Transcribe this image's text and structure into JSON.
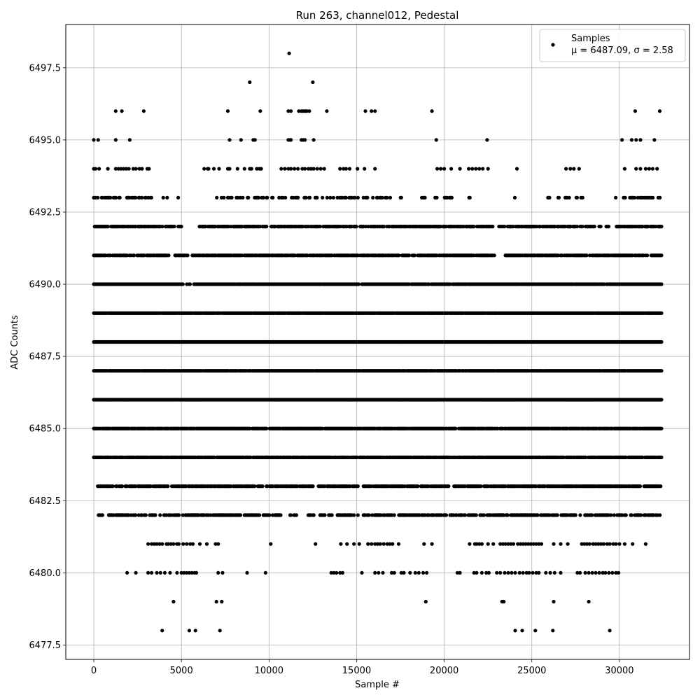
{
  "chart_data": {
    "type": "scatter",
    "title": "Run 263, channel012, Pedestal",
    "xlabel": "Sample #",
    "ylabel": "ADC Counts",
    "xlim": [
      -1600,
      34000
    ],
    "ylim": [
      6477.0,
      6499.0
    ],
    "x_ticks": [
      0,
      5000,
      10000,
      15000,
      20000,
      25000,
      30000
    ],
    "x_tick_labels": [
      "0",
      "5000",
      "10000",
      "15000",
      "20000",
      "25000",
      "30000"
    ],
    "y_ticks": [
      6477.5,
      6480.0,
      6482.5,
      6485.0,
      6487.5,
      6490.0,
      6492.5,
      6495.0,
      6497.5
    ],
    "y_tick_labels": [
      "6477.5",
      "6480.0",
      "6482.5",
      "6485.0",
      "6487.5",
      "6490.0",
      "6492.5",
      "6495.0",
      "6497.5"
    ],
    "grid": true,
    "legend": {
      "position": "top-right",
      "label": "Samples",
      "stats": "μ = 6487.09, σ = 2.58"
    },
    "marker_color": "#000000",
    "sample_range": [
      0,
      32400
    ],
    "mean": 6487.09,
    "sigma": 2.58,
    "series": [
      {
        "name": "Samples",
        "levels": [
          {
            "y": 6498,
            "x": [
              11150
            ]
          },
          {
            "y": 6497,
            "x": [
              8900,
              12500
            ]
          },
          {
            "y": 6496,
            "x": [
              1250,
              1600,
              2850,
              7650,
              9500,
              11100,
              11250,
              11700,
              11850,
              11950,
              12050,
              12150,
              12300,
              13300,
              15500,
              15850,
              16050,
              19300,
              30900,
              32300
            ]
          },
          {
            "y": 6495,
            "x": [
              0,
              250,
              1250,
              2050,
              7750,
              8400,
              9100,
              9200,
              11100,
              11200,
              11250,
              11850,
              11950,
              12050,
              12550,
              19550,
              22450,
              30150,
              30700,
              30950,
              31200,
              32000
            ]
          },
          {
            "y": 6494,
            "x": [
              0,
              100,
              300,
              800,
              1250,
              1400,
              1550,
              1700,
              1850,
              2000,
              2250,
              2400,
              2600,
              2750,
              3050,
              3150,
              6300,
              6500,
              6550,
              6850,
              7150,
              7650,
              7750,
              8200,
              8600,
              8900,
              9000,
              9300,
              9450,
              9550,
              10700,
              10900,
              11100,
              11250,
              11450,
              11650,
              11900,
              12050,
              12250,
              12400,
              12550,
              12750,
              12950,
              13150,
              14050,
              14250,
              14400,
              14600,
              15050,
              15450,
              16050,
              19600,
              19800,
              20000,
              20400,
              20900,
              21400,
              21600,
              21800,
              22000,
              22200,
              22500,
              24150,
              26950,
              27200,
              27400,
              27700,
              30300,
              30950,
              31200,
              31500,
              31700,
              31900,
              32150
            ]
          },
          {
            "y": 6493,
            "density": 0.35,
            "gaps": [
              [
                3300,
                3900
              ],
              [
                4300,
                4800
              ],
              [
                5000,
                5500
              ],
              [
                5700,
                6900
              ],
              [
                17000,
                17500
              ],
              [
                17800,
                18200
              ],
              [
                18400,
                18700
              ],
              [
                19000,
                19200
              ],
              [
                20500,
                21400
              ],
              [
                21900,
                22100
              ],
              [
                22300,
                24000
              ],
              [
                24300,
                25900
              ],
              [
                26200,
                26500
              ],
              [
                26700,
                26900
              ],
              [
                28000,
                29700
              ],
              [
                29800,
                30200
              ]
            ]
          },
          {
            "y": 6492,
            "density": 0.7,
            "gaps": [
              [
                4600,
                4800
              ],
              [
                5000,
                6000
              ],
              [
                9900,
                10100
              ],
              [
                22800,
                23100
              ],
              [
                28600,
                28800
              ],
              [
                29000,
                29200
              ],
              [
                29400,
                29800
              ]
            ]
          },
          {
            "y": 6491,
            "density": 0.8,
            "gaps": [
              [
                4300,
                4600
              ],
              [
                5400,
                5600
              ],
              [
                22900,
                23400
              ]
            ]
          },
          {
            "y": 6490,
            "density": 0.9,
            "gaps": [
              [
                5100,
                5300
              ],
              [
                5500,
                5700
              ]
            ]
          },
          {
            "y": 6489,
            "density": 0.97,
            "gaps": []
          },
          {
            "y": 6488,
            "density": 1.0,
            "gaps": []
          },
          {
            "y": 6487,
            "density": 0.97,
            "gaps": []
          },
          {
            "y": 6486,
            "density": 1.0,
            "gaps": []
          },
          {
            "y": 6485,
            "density": 0.92,
            "gaps": []
          },
          {
            "y": 6484,
            "density": 0.9,
            "gaps": []
          },
          {
            "y": 6483,
            "density": 0.75,
            "gaps": [
              [
                0,
                200
              ],
              [
                1900,
                2000
              ],
              [
                12600,
                12800
              ],
              [
                15100,
                15300
              ],
              [
                20300,
                20500
              ]
            ]
          },
          {
            "y": 6482,
            "density": 0.55,
            "gaps": [
              [
                0,
                200
              ],
              [
                10700,
                11200
              ],
              [
                11600,
                12200
              ],
              [
                12600,
                12800
              ],
              [
                13600,
                13900
              ]
            ]
          },
          {
            "y": 6481,
            "x": [
              3100,
              3300,
              3450,
              3600,
              3750,
              3900,
              4150,
              4250,
              4400,
              4550,
              4750,
              4850,
              5100,
              5300,
              5500,
              5650,
              6050,
              6450,
              6950,
              7100,
              10100,
              12650,
              14100,
              14450,
              14850,
              15150,
              15650,
              15850,
              16050,
              16200,
              16350,
              16550,
              16750,
              16900,
              17050,
              17400,
              18850,
              19300,
              21450,
              21750,
              21850,
              22000,
              22150,
              22500,
              22800,
              23200,
              23350,
              23500,
              23650,
              23800,
              23950,
              24200,
              24350,
              24500,
              24650,
              24800,
              24950,
              25100,
              25250,
              25400,
              25550,
              26250,
              26650,
              27050,
              27850,
              28000,
              28150,
              28300,
              28500,
              28650,
              28800,
              28950,
              29100,
              29300,
              29450,
              29650,
              29800,
              30000,
              30300,
              30750,
              31500
            ]
          },
          {
            "y": 6480,
            "x": [
              1900,
              2400,
              3100,
              3300,
              3600,
              3800,
              4050,
              4350,
              4750,
              5000,
              5150,
              5300,
              5450,
              5600,
              5750,
              5850,
              7100,
              7350,
              8750,
              9800,
              13550,
              13700,
              13850,
              14050,
              14200,
              15300,
              16050,
              16250,
              16500,
              17000,
              17150,
              17550,
              17700,
              18050,
              18350,
              18550,
              18800,
              19000,
              20750,
              20900,
              21700,
              21850,
              22150,
              22400,
              22550,
              23000,
              23200,
              23450,
              23650,
              23850,
              24050,
              24300,
              24500,
              24700,
              24850,
              25050,
              25250,
              25400,
              25800,
              26050,
              26300,
              26650,
              27600,
              27750,
              28050,
              28250,
              28450,
              28650,
              28850,
              29050,
              29200,
              29400,
              29600,
              29800,
              29950
            ]
          },
          {
            "y": 6479,
            "x": [
              4550,
              7000,
              7300,
              18950,
              23300,
              23400,
              26250,
              28250
            ]
          },
          {
            "y": 6478,
            "x": [
              3900,
              5450,
              5800,
              7200,
              24050,
              24450,
              25200,
              26200,
              29450
            ]
          }
        ]
      }
    ]
  }
}
